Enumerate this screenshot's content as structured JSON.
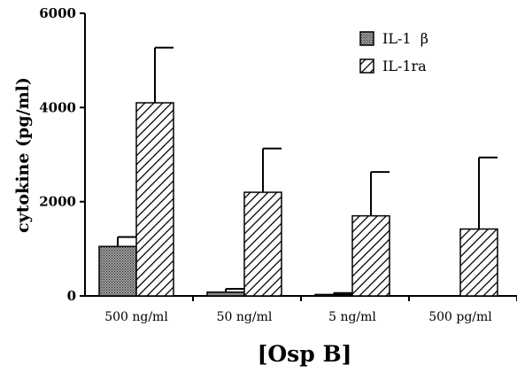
{
  "chart_data": {
    "type": "bar",
    "categories": [
      "500 ng/ml",
      "50 ng/ml",
      "5 ng/ml",
      "500 pg/ml"
    ],
    "series": [
      {
        "name": "IL-1  β",
        "values": [
          1050,
          80,
          30,
          0
        ],
        "errors": [
          200,
          70,
          30,
          0
        ],
        "fill": "crosshatch"
      },
      {
        "name": "IL-1ra",
        "values": [
          4100,
          2200,
          1700,
          1420
        ],
        "errors": [
          1170,
          930,
          930,
          1520
        ],
        "fill": "diagonal"
      }
    ],
    "title": "",
    "xlabel": "[Osp B]",
    "ylabel": "cytokine (pg/ml)",
    "ylim": [
      0,
      6000
    ],
    "yticks": [
      0,
      2000,
      4000,
      6000
    ],
    "legend_position": "top-right",
    "grid": false
  }
}
